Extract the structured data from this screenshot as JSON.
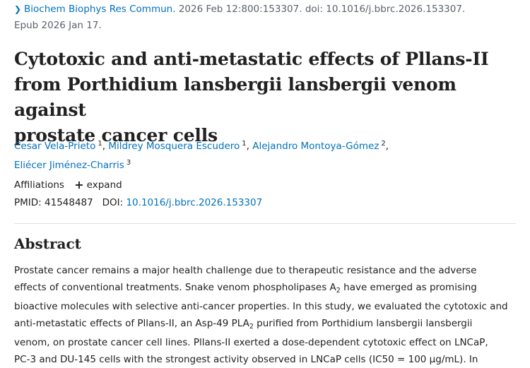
{
  "citation": {
    "journal": "Biochem Biophys Res Commun.",
    "details": "2026 Feb 12:800:153307. doi: 10.1016/j.bbrc.2026.153307.",
    "epub": "Epub 2026 Jan 17."
  },
  "title": {
    "line1": "Cytotoxic and anti-metastatic effects of Pllans-II",
    "line2": "from Porthidium lansbergii lansbergii venom against",
    "line3": "prostate cancer cells"
  },
  "authors": [
    {
      "name": "Cesar Vela-Prieto",
      "aff": "1"
    },
    {
      "name": "Mildrey Mosquera Escudero",
      "aff": "1"
    },
    {
      "name": "Alejandro Montoya-Gómez",
      "aff": "2"
    },
    {
      "name": "Eliécer Jiménez-Charris",
      "aff": "3"
    }
  ],
  "affiliations": {
    "label": "Affiliations",
    "expand": "expand"
  },
  "ids": {
    "pmid_label": "PMID:",
    "pmid": "41548487",
    "doi_label": "DOI:",
    "doi": "10.1016/j.bbrc.2026.153307"
  },
  "abstract": {
    "heading": "Abstract",
    "l1": "Prostate cancer remains a major health challenge due to therapeutic resistance and the adverse",
    "l2a": "effects of conventional treatments. Snake venom phospholipases A",
    "l2sub": "2",
    "l2b": " have emerged as promising",
    "l3": "bioactive molecules with selective anti-cancer properties. In this study, we evaluated the cytotoxic and",
    "l4a": "anti-metastatic effects of Pllans-II, an Asp-49 PLA",
    "l4sub": "2",
    "l4b": " purified from Porthidium lansbergii lansbergii",
    "l5": "venom, on prostate cancer cell lines. Pllans-II exerted a dose-dependent cytotoxic effect on LNCaP,",
    "l6": "PC-3 and DU-145 cells with the strongest activity observed in LNCaP cells (IC50 = 100 μg/mL). In"
  }
}
